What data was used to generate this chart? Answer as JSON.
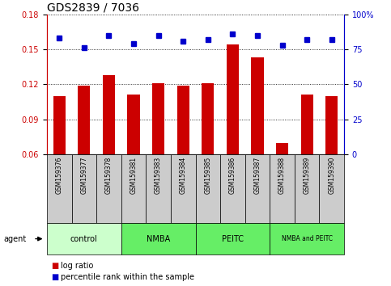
{
  "title": "GDS2839 / 7036",
  "samples": [
    "GSM159376",
    "GSM159377",
    "GSM159378",
    "GSM159381",
    "GSM159383",
    "GSM159384",
    "GSM159385",
    "GSM159386",
    "GSM159387",
    "GSM159388",
    "GSM159389",
    "GSM159390"
  ],
  "log_ratio": [
    0.11,
    0.119,
    0.128,
    0.111,
    0.121,
    0.119,
    0.121,
    0.154,
    0.143,
    0.07,
    0.111,
    0.11
  ],
  "percentile_rank": [
    83,
    76,
    85,
    79,
    85,
    81,
    82,
    86,
    85,
    78,
    82,
    82
  ],
  "ylim_left": [
    0.06,
    0.18
  ],
  "ylim_right": [
    0,
    100
  ],
  "yticks_left": [
    0.06,
    0.09,
    0.12,
    0.15,
    0.18
  ],
  "yticks_right": [
    0,
    25,
    50,
    75,
    100
  ],
  "ytick_right_labels": [
    "0",
    "25",
    "50",
    "75",
    "100%"
  ],
  "bar_color": "#cc0000",
  "dot_color": "#0000cc",
  "bar_bottom": 0.06,
  "group_configs": [
    {
      "label": "control",
      "start": 0,
      "end": 3,
      "color": "#ccffcc"
    },
    {
      "label": "NMBA",
      "start": 3,
      "end": 6,
      "color": "#66ee66"
    },
    {
      "label": "PEITC",
      "start": 6,
      "end": 9,
      "color": "#66ee66"
    },
    {
      "label": "NMBA and PEITC",
      "start": 9,
      "end": 12,
      "color": "#66ee66"
    }
  ],
  "xlabel_agent": "agent",
  "legend_bar_label": "log ratio",
  "legend_dot_label": "percentile rank within the sample",
  "title_fontsize": 10,
  "tick_label_fontsize": 7,
  "sample_label_fontsize": 5.5,
  "group_label_fontsize": 7,
  "legend_fontsize": 7,
  "agent_fontsize": 7,
  "bg_color": "#ffffff",
  "sample_bg": "#cccccc"
}
